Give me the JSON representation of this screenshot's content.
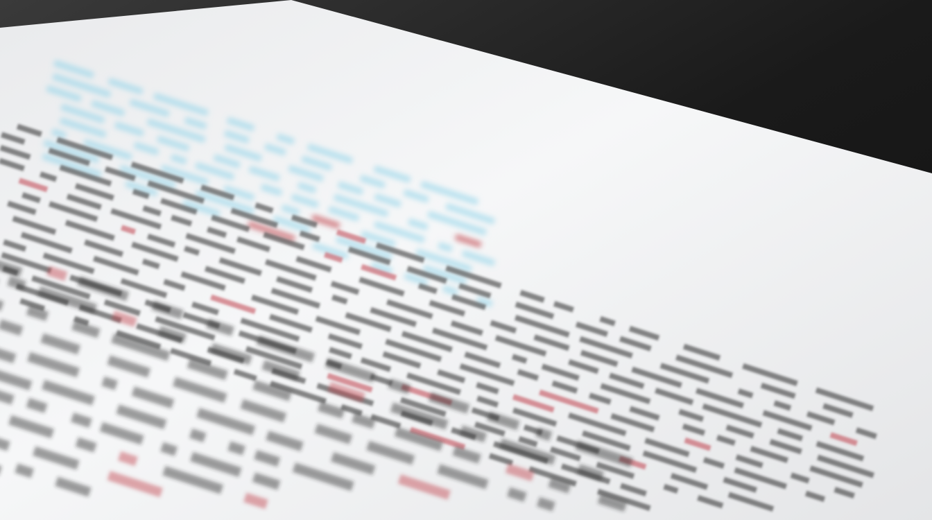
{
  "photo": {
    "subject": "printed-table-document",
    "colors": {
      "background": "#1c1c1c",
      "paper": "#f2f3f4",
      "ink": "#2a2a2a",
      "highlight_blue": "#8fd3ea",
      "accent_red": "#c0404a"
    }
  }
}
